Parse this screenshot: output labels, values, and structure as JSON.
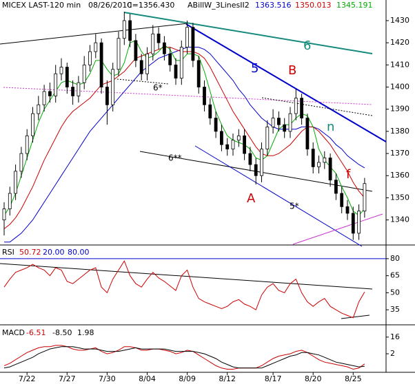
{
  "chart_data": [
    {
      "type": "candlestick",
      "title": "MICEX LAST-120 min",
      "date": "08/26/2010",
      "last": "C=1356.430",
      "indicator": "ABillW_3LinesII2",
      "categories": [
        null,
        null,
        null,
        null,
        "7/22",
        null,
        null,
        null,
        null,
        null,
        null,
        "7/27",
        null,
        null,
        null,
        null,
        null,
        null,
        "7/30",
        null,
        null,
        null,
        null,
        null,
        null,
        "8/04",
        null,
        null,
        null,
        null,
        null,
        null,
        "8/09",
        null,
        null,
        null,
        null,
        null,
        null,
        "8/12",
        null,
        null,
        null,
        null,
        null,
        null,
        null,
        "8/17",
        null,
        null,
        null,
        null,
        null,
        null,
        "8/20",
        null,
        null,
        null,
        null,
        null,
        null,
        "8/25",
        null,
        null
      ],
      "open": [
        1340,
        1345,
        1352,
        1362,
        1370,
        1378,
        1388,
        1392,
        1398,
        1396,
        1406,
        1409,
        1400,
        1396,
        1402,
        1410,
        1416,
        1420,
        1400,
        1392,
        1408,
        1422,
        1430,
        1421,
        1412,
        1406,
        1415,
        1424,
        1420,
        1415,
        1410,
        1404,
        1418,
        1427,
        1412,
        1400,
        1392,
        1386,
        1380,
        1374,
        1372,
        1376,
        1378,
        1370,
        1365,
        1360,
        1372,
        1382,
        1386,
        1383,
        1380,
        1388,
        1395,
        1386,
        1372,
        1364,
        1366,
        1368,
        1358,
        1352,
        1346,
        1343,
        1334,
        1344
      ],
      "high": [
        1348,
        1355,
        1365,
        1373,
        1381,
        1391,
        1396,
        1401,
        1402,
        1410,
        1413,
        1411,
        1403,
        1405,
        1414,
        1419,
        1424,
        1422,
        1403,
        1411,
        1425,
        1434,
        1433,
        1424,
        1415,
        1418,
        1428,
        1427,
        1423,
        1418,
        1413,
        1421,
        1430,
        1429,
        1414,
        1403,
        1395,
        1389,
        1383,
        1377,
        1379,
        1381,
        1381,
        1373,
        1368,
        1375,
        1385,
        1390,
        1389,
        1386,
        1391,
        1399,
        1397,
        1388,
        1375,
        1369,
        1371,
        1370,
        1361,
        1355,
        1349,
        1346,
        1347,
        1359
      ],
      "low": [
        1333,
        1342,
        1349,
        1359,
        1367,
        1375,
        1385,
        1389,
        1393,
        1393,
        1403,
        1397,
        1392,
        1393,
        1399,
        1407,
        1413,
        1397,
        1383,
        1389,
        1405,
        1419,
        1418,
        1409,
        1403,
        1403,
        1412,
        1417,
        1412,
        1407,
        1401,
        1401,
        1415,
        1409,
        1397,
        1389,
        1383,
        1377,
        1371,
        1369,
        1369,
        1373,
        1367,
        1362,
        1356,
        1357,
        1369,
        1379,
        1380,
        1377,
        1377,
        1385,
        1383,
        1369,
        1361,
        1361,
        1363,
        1355,
        1349,
        1343,
        1340,
        1331,
        1331,
        1341
      ],
      "close": [
        1345,
        1352,
        1362,
        1370,
        1378,
        1388,
        1392,
        1398,
        1396,
        1406,
        1409,
        1400,
        1396,
        1402,
        1410,
        1416,
        1420,
        1400,
        1392,
        1408,
        1422,
        1430,
        1421,
        1412,
        1406,
        1415,
        1424,
        1420,
        1415,
        1410,
        1404,
        1418,
        1427,
        1412,
        1400,
        1392,
        1386,
        1380,
        1374,
        1372,
        1376,
        1378,
        1370,
        1365,
        1360,
        1372,
        1382,
        1386,
        1383,
        1380,
        1388,
        1395,
        1386,
        1372,
        1364,
        1366,
        1368,
        1358,
        1352,
        1346,
        1343,
        1334,
        1344,
        1356.43
      ],
      "series": [
        {
          "name": "1363.516",
          "color": "#0000cc",
          "values": [
            1330,
            1330,
            1332,
            1334,
            1337,
            1340,
            1344,
            1348,
            1352,
            1356,
            1360,
            1364,
            1368,
            1372,
            1376,
            1380,
            1383,
            1386,
            1389,
            1392,
            1395,
            1398,
            1401,
            1404,
            1407,
            1409,
            1411,
            1413,
            1414,
            1415,
            1416,
            1417,
            1418,
            1418,
            1418,
            1417,
            1415,
            1412,
            1409,
            1406,
            1403,
            1399,
            1396,
            1392,
            1389,
            1386,
            1384,
            1382,
            1381,
            1381,
            1381,
            1381,
            1382,
            1382,
            1382,
            1381,
            1379,
            1377,
            1374,
            1372,
            1369,
            1367,
            1365,
            1363.516
          ]
        },
        {
          "name": "1350.013",
          "color": "#cc0000",
          "values": [
            1336,
            1338,
            1341,
            1345,
            1350,
            1355,
            1361,
            1367,
            1372,
            1377,
            1382,
            1386,
            1389,
            1391,
            1393,
            1395,
            1398,
            1401,
            1402,
            1403,
            1405,
            1407,
            1410,
            1413,
            1414,
            1415,
            1416,
            1417,
            1418,
            1418,
            1417,
            1416,
            1416,
            1416,
            1415,
            1413,
            1409,
            1404,
            1399,
            1394,
            1389,
            1385,
            1381,
            1377,
            1373,
            1370,
            1369,
            1369,
            1370,
            1372,
            1374,
            1377,
            1380,
            1382,
            1382,
            1380,
            1377,
            1374,
            1370,
            1366,
            1362,
            1357,
            1353,
            1350.013
          ]
        },
        {
          "name": "1345.191",
          "color": "#00aa00",
          "values": [
            1342,
            1346,
            1352,
            1360,
            1368,
            1376,
            1384,
            1390,
            1394,
            1398,
            1402,
            1403,
            1402,
            1401,
            1402,
            1406,
            1412,
            1412,
            1408,
            1405,
            1406,
            1411,
            1420,
            1421,
            1416,
            1413,
            1414,
            1416,
            1419,
            1417,
            1412,
            1412,
            1415,
            1415,
            1414,
            1407,
            1398,
            1389,
            1383,
            1378,
            1376,
            1375,
            1374,
            1372,
            1368,
            1367,
            1369,
            1375,
            1381,
            1383,
            1383,
            1386,
            1388,
            1387,
            1382,
            1372,
            1367,
            1364,
            1361,
            1355,
            1350,
            1344,
            1342,
            1345.191
          ]
        }
      ],
      "ylim": [
        1329,
        1439
      ],
      "yticks": [
        1340,
        1350,
        1360,
        1370,
        1380,
        1390,
        1400,
        1410,
        1420,
        1430
      ],
      "annotations": [
        "5",
        "6",
        "B",
        "A",
        "n",
        "f",
        "6*",
        "6**",
        "5*"
      ]
    },
    {
      "type": "line",
      "title": "RSI",
      "series": [
        {
          "name": "50.72",
          "color": "#cc0000",
          "values": [
            55,
            62,
            68,
            70,
            72,
            75,
            72,
            70,
            65,
            72,
            70,
            60,
            58,
            62,
            66,
            70,
            72,
            55,
            50,
            62,
            70,
            78,
            65,
            58,
            55,
            62,
            68,
            63,
            60,
            56,
            52,
            65,
            70,
            55,
            45,
            42,
            40,
            38,
            36,
            38,
            42,
            44,
            40,
            38,
            35,
            48,
            55,
            58,
            52,
            50,
            58,
            62,
            50,
            42,
            38,
            42,
            45,
            38,
            35,
            32,
            30,
            28,
            42,
            50.72
          ]
        }
      ],
      "levels": [
        {
          "value": 20,
          "label": "20.00"
        },
        {
          "value": 80,
          "label": "80.00"
        }
      ],
      "ylim": [
        23,
        89
      ],
      "yticks": [
        35,
        50,
        65,
        80
      ]
    },
    {
      "type": "line",
      "title": "MACD",
      "histogram_label": "1.98",
      "series": [
        {
          "name": "-6.51",
          "color": "#cc0000",
          "values": [
            -8,
            -6,
            -3,
            0,
            3,
            5,
            7,
            8,
            8,
            9,
            9,
            8,
            6,
            5,
            5,
            6,
            7,
            4,
            2,
            3,
            5,
            8,
            8,
            7,
            5,
            5,
            6,
            6,
            5,
            4,
            2,
            3,
            5,
            4,
            1,
            -2,
            -5,
            -8,
            -10,
            -11,
            -11,
            -10,
            -10,
            -10,
            -10,
            -8,
            -5,
            -2,
            0,
            1,
            2,
            4,
            5,
            3,
            0,
            -3,
            -5,
            -6,
            -7,
            -8,
            -9,
            -11,
            -10,
            -6.51
          ]
        },
        {
          "name": "-8.50",
          "color": "#000000",
          "values": [
            -10,
            -9,
            -7,
            -5,
            -3,
            -1,
            2,
            4,
            6,
            7,
            8,
            8,
            8,
            7,
            6,
            6,
            6,
            5,
            4,
            4,
            4,
            5,
            6,
            7,
            6,
            6,
            6,
            6,
            6,
            5,
            4,
            4,
            4,
            4,
            3,
            2,
            0,
            -2,
            -5,
            -7,
            -9,
            -10,
            -10,
            -10,
            -10,
            -10,
            -8,
            -6,
            -4,
            -2,
            0,
            1,
            3,
            3,
            2,
            1,
            -1,
            -3,
            -5,
            -6,
            -7,
            -8,
            -9,
            -8.5
          ]
        }
      ],
      "ylim": [
        -13,
        24
      ],
      "yticks": [
        2,
        16
      ]
    }
  ]
}
